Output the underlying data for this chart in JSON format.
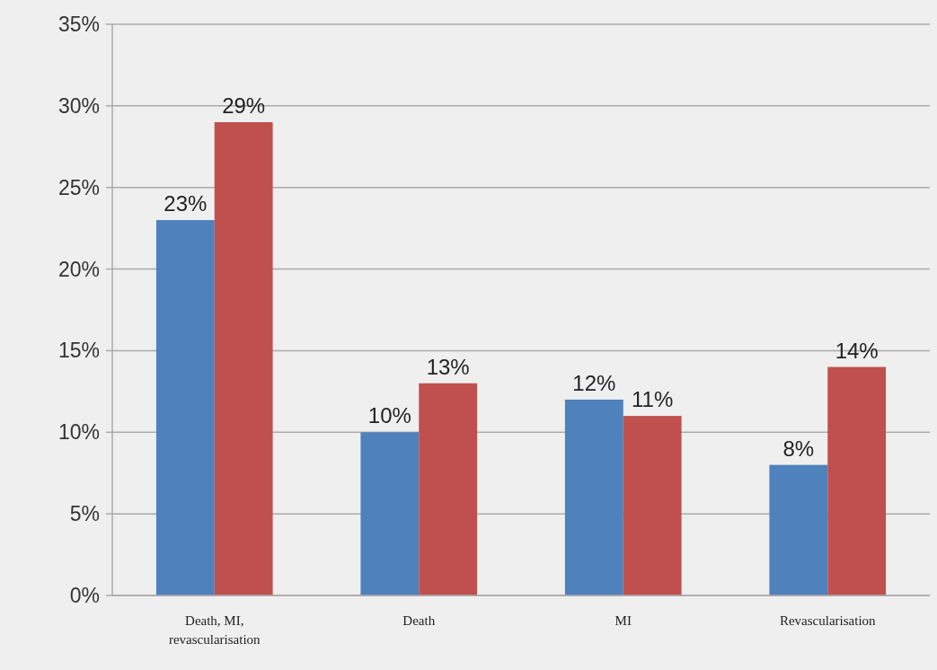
{
  "chart_data": {
    "type": "bar",
    "categories": [
      "Death, MI, revascularisation",
      "Death",
      "MI",
      "Revascularisation"
    ],
    "series": [
      {
        "color": "#4f81bd",
        "values": [
          23,
          10,
          12,
          8
        ],
        "value_labels": [
          "23%",
          "10%",
          "12%",
          "8%"
        ]
      },
      {
        "color": "#c0504d",
        "values": [
          29,
          13,
          11,
          14
        ],
        "value_labels": [
          "29%",
          "13%",
          "11%",
          "14%"
        ]
      }
    ],
    "ylim": [
      0,
      35
    ],
    "yticks": [
      {
        "value": 0,
        "label": "0%"
      },
      {
        "value": 5,
        "label": "5%"
      },
      {
        "value": 10,
        "label": "10%"
      },
      {
        "value": 15,
        "label": "15%"
      },
      {
        "value": 20,
        "label": "20%"
      },
      {
        "value": 25,
        "label": "25%"
      },
      {
        "value": 30,
        "label": "30%"
      },
      {
        "value": 35,
        "label": "35%"
      }
    ],
    "grid": "y"
  }
}
